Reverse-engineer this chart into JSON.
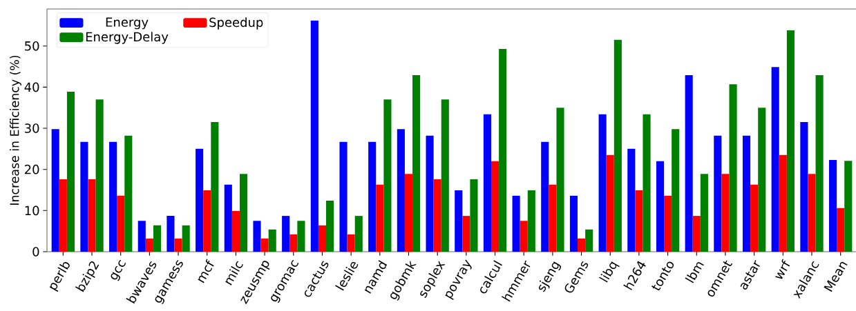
{
  "chart_data": {
    "type": "bar",
    "ylabel": "Increase in Efficiency (%)",
    "categories": [
      "perlb",
      "bzip2",
      "gcc",
      "bwaves",
      "gamess",
      "mcf",
      "milc",
      "zeusmp",
      "gromac",
      "cactus",
      "leslie",
      "namd",
      "gobmk",
      "soplex",
      "povray",
      "calcul",
      "hmmer",
      "sjeng",
      "Gems",
      "libq",
      "h264",
      "tonto",
      "lbm",
      "omnet",
      "astar",
      "wrf",
      "xalanc",
      "Mean"
    ],
    "series": [
      {
        "name": "Energy",
        "color": "#0000ff",
        "values": [
          29.8,
          26.7,
          26.7,
          7.5,
          8.7,
          25.0,
          16.3,
          7.5,
          8.7,
          56.2,
          26.7,
          26.7,
          29.8,
          28.2,
          14.9,
          33.4,
          13.6,
          26.7,
          13.6,
          33.4,
          25.0,
          22.0,
          42.9,
          28.2,
          28.2,
          44.9,
          31.5,
          22.3
        ]
      },
      {
        "name": "Speedup",
        "color": "#ff0000",
        "values": [
          17.6,
          17.6,
          13.6,
          3.2,
          3.2,
          14.9,
          9.9,
          3.2,
          4.2,
          6.4,
          4.2,
          16.3,
          18.9,
          17.6,
          8.7,
          22.0,
          7.5,
          16.3,
          3.2,
          23.5,
          14.9,
          13.6,
          8.7,
          18.9,
          16.3,
          23.5,
          18.9,
          10.6
        ]
      },
      {
        "name": "Energy-Delay",
        "color": "#008000",
        "values": [
          38.9,
          37.0,
          28.2,
          6.4,
          6.4,
          31.5,
          18.9,
          5.4,
          7.5,
          12.4,
          8.7,
          37.0,
          42.9,
          37.0,
          17.6,
          49.3,
          14.9,
          35.0,
          5.4,
          51.5,
          33.4,
          29.8,
          18.9,
          40.7,
          35.0,
          53.8,
          42.9,
          22.1
        ]
      }
    ],
    "ylim": [
      0,
      59
    ],
    "yticks": [
      0,
      10,
      20,
      30,
      40,
      50
    ],
    "legend": "top left"
  }
}
